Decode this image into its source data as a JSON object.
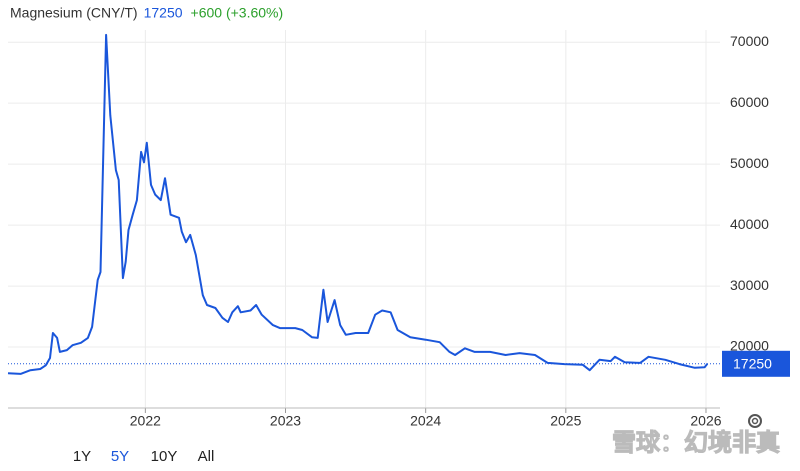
{
  "chart_data": {
    "type": "line",
    "change": "+600 (+3.60%)",
    "last_value": 17250,
    "x": [
      2021.02,
      2021.11,
      2021.18,
      2021.25,
      2021.29,
      2021.32,
      2021.34,
      2021.37,
      2021.39,
      2021.44,
      2021.48,
      2021.54,
      2021.59,
      2021.62,
      2021.66,
      2021.68,
      2021.72,
      2021.75,
      2021.79,
      2021.81,
      2021.84,
      2021.86,
      2021.88,
      2021.91,
      2021.94,
      2021.97,
      2021.99,
      2022.01,
      2022.04,
      2022.07,
      2022.11,
      2022.14,
      2022.18,
      2022.24,
      2022.26,
      2022.29,
      2022.32,
      2022.36,
      2022.41,
      2022.44,
      2022.5,
      2022.55,
      2022.59,
      2022.62,
      2022.66,
      2022.68,
      2022.75,
      2022.79,
      2022.83,
      2022.91,
      2022.96,
      2023.07,
      2023.12,
      2023.19,
      2023.23,
      2023.27,
      2023.3,
      2023.35,
      2023.39,
      2023.43,
      2023.5,
      2023.59,
      2023.64,
      2023.69,
      2023.75,
      2023.8,
      2023.89,
      2024.0,
      2024.1,
      2024.17,
      2024.21,
      2024.28,
      2024.35,
      2024.46,
      2024.57,
      2024.67,
      2024.78,
      2024.87,
      2024.99,
      2025.12,
      2025.17,
      2025.24,
      2025.32,
      2025.35,
      2025.42,
      2025.53,
      2025.59,
      2025.71,
      2025.81,
      2025.92,
      2025.99,
      2026.01
    ],
    "series": [
      {
        "name": "Magnesium (CNY/T)",
        "color": "#1a56db",
        "values": [
          15700,
          15600,
          16200,
          16400,
          17000,
          18200,
          22300,
          21500,
          19200,
          19500,
          20300,
          20700,
          21500,
          23300,
          31000,
          32300,
          71200,
          58000,
          49000,
          47400,
          31300,
          34000,
          39200,
          41700,
          44100,
          52000,
          50300,
          53500,
          46600,
          45000,
          44100,
          47700,
          41700,
          41200,
          38900,
          37200,
          38400,
          35100,
          28500,
          26900,
          26400,
          24800,
          24100,
          25700,
          26700,
          25700,
          26000,
          26900,
          25300,
          23600,
          23100,
          23100,
          22800,
          21600,
          21500,
          29400,
          24100,
          27700,
          23600,
          22000,
          22300,
          22300,
          25300,
          26000,
          25700,
          22800,
          21600,
          21200,
          20800,
          19200,
          18700,
          19800,
          19200,
          19200,
          18700,
          19000,
          18700,
          17400,
          17200,
          17100,
          16200,
          17900,
          17700,
          18400,
          17500,
          17400,
          18400,
          17900,
          17200,
          16600,
          16700,
          17250
        ]
      }
    ],
    "xlim": [
      2021.02,
      2026.1
    ],
    "xticks": [
      2022,
      2023,
      2024,
      2025,
      2026
    ],
    "ylim": [
      10000,
      72000
    ],
    "yticks": [
      20000,
      30000,
      40000,
      50000,
      60000,
      70000
    ],
    "grid": true,
    "change_color": "#2ca02c",
    "ranges": [
      "1Y",
      "5Y",
      "10Y",
      "All"
    ],
    "active_range": 1,
    "watermark": "雪球：幻境非真"
  }
}
